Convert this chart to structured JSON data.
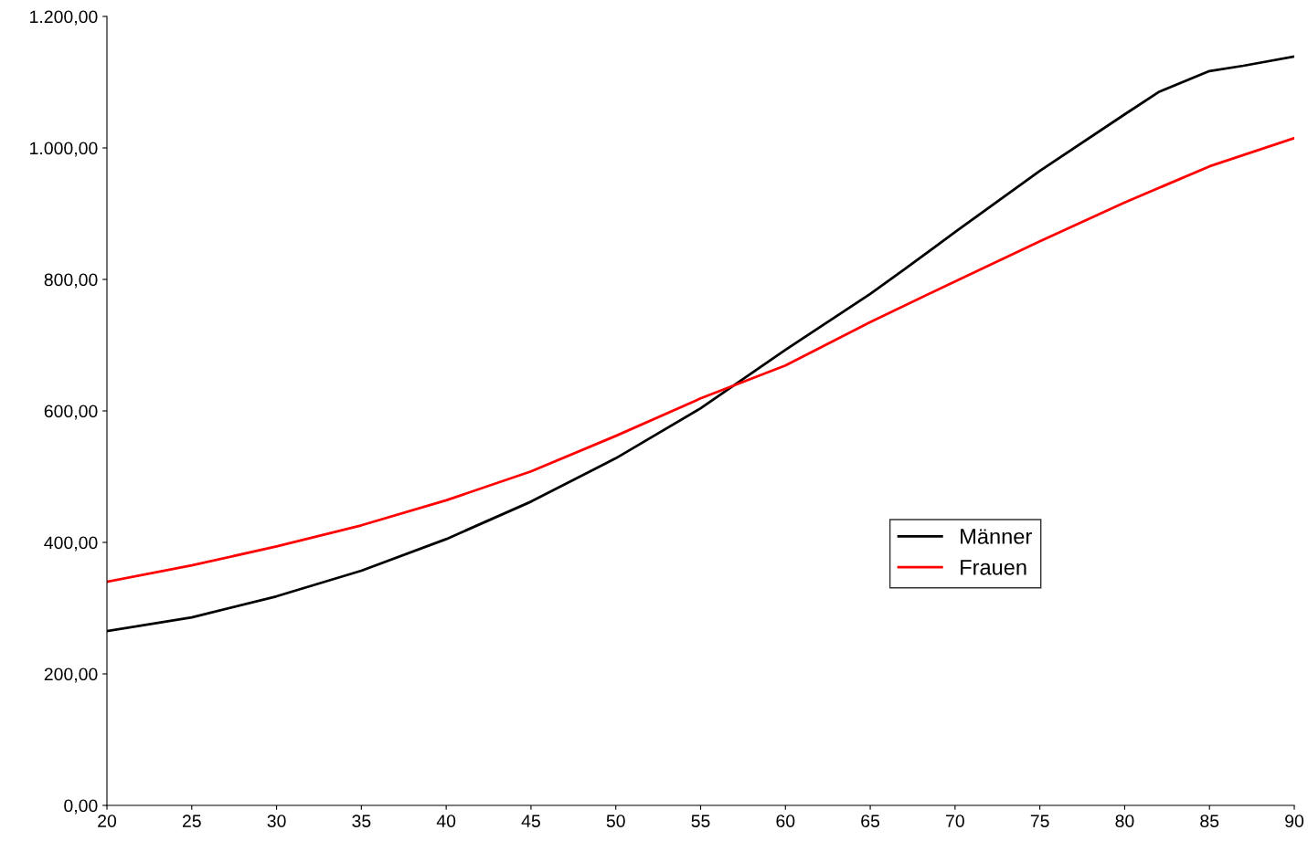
{
  "chart_data": {
    "type": "line",
    "x": [
      20,
      25,
      30,
      35,
      40,
      45,
      50,
      55,
      60,
      65,
      67,
      70,
      75,
      80,
      82,
      85,
      87,
      90
    ],
    "series": [
      {
        "name": "Männer",
        "color": "#000000",
        "values": [
          265,
          286,
          318,
          357,
          405,
          462,
          528,
          604,
          693,
          778,
          815,
          872,
          965,
          1051,
          1085,
          1117,
          1125,
          1139
        ]
      },
      {
        "name": "Frauen",
        "color": "#ff0000",
        "x": [
          20,
          25,
          30,
          35,
          40,
          45,
          50,
          55,
          60,
          65,
          70,
          75,
          80,
          85,
          90
        ],
        "values": [
          340,
          365,
          394,
          426,
          464,
          508,
          562,
          619,
          669,
          735,
          797,
          858,
          917,
          972,
          1015
        ]
      }
    ],
    "xlim": [
      20,
      90
    ],
    "xticks": [
      20,
      25,
      30,
      35,
      40,
      45,
      50,
      55,
      60,
      65,
      70,
      75,
      80,
      85,
      90
    ],
    "ylim": [
      0,
      1200
    ],
    "yticks": [
      {
        "value": 0,
        "label": "0,00"
      },
      {
        "value": 200,
        "label": "200,00"
      },
      {
        "value": 400,
        "label": "400,00"
      },
      {
        "value": 600,
        "label": "600,00"
      },
      {
        "value": 800,
        "label": "800,00"
      },
      {
        "value": 1000,
        "label": "1.000,00"
      },
      {
        "value": 1200,
        "label": "1.200,00"
      }
    ],
    "grid": false,
    "legend": "center right",
    "marker": "none",
    "line_style": "solid"
  }
}
